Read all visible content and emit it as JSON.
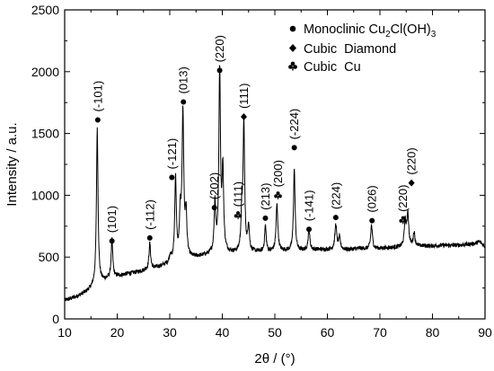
{
  "chart_data": {
    "type": "line",
    "xlabel": "2θ / (°)",
    "ylabel": "Intensity / a.u.",
    "xlim": [
      10,
      90
    ],
    "ylim": [
      0,
      2500
    ],
    "xticks": [
      10,
      20,
      30,
      40,
      50,
      60,
      70,
      80,
      90
    ],
    "yticks": [
      0,
      500,
      1000,
      1500,
      2000,
      2500
    ],
    "grid": false,
    "legend_position": "top-right",
    "legend": [
      {
        "symbol": "circle",
        "label_main": "Monoclinic Cu",
        "sub1": "2",
        "label_mid": "Cl(OH)",
        "sub2": "3",
        "label": "Monoclinic Cu2Cl(OH)3"
      },
      {
        "symbol": "diamond",
        "label": "Cubic  Diamond"
      },
      {
        "symbol": "club",
        "label": "Cubic  Cu"
      }
    ],
    "background": [
      [
        10,
        150
      ],
      [
        12,
        175
      ],
      [
        14,
        215
      ],
      [
        15,
        245
      ],
      [
        16,
        275
      ],
      [
        17,
        300
      ],
      [
        18,
        320
      ],
      [
        20,
        345
      ],
      [
        22,
        365
      ],
      [
        24,
        380
      ],
      [
        26,
        400
      ],
      [
        28,
        420
      ],
      [
        30,
        445
      ],
      [
        32,
        475
      ],
      [
        34,
        490
      ],
      [
        36,
        505
      ],
      [
        38,
        520
      ],
      [
        40,
        530
      ],
      [
        42,
        530
      ],
      [
        44,
        535
      ],
      [
        46,
        540
      ],
      [
        48,
        540
      ],
      [
        50,
        545
      ],
      [
        52,
        550
      ],
      [
        54,
        545
      ],
      [
        56,
        555
      ],
      [
        58,
        560
      ],
      [
        60,
        560
      ],
      [
        62,
        565
      ],
      [
        64,
        560
      ],
      [
        66,
        570
      ],
      [
        68,
        565
      ],
      [
        70,
        570
      ],
      [
        72,
        575
      ],
      [
        74,
        580
      ],
      [
        76,
        585
      ],
      [
        78,
        590
      ],
      [
        80,
        590
      ],
      [
        82,
        595
      ],
      [
        84,
        595
      ],
      [
        86,
        600
      ],
      [
        88,
        610
      ],
      [
        89,
        625
      ],
      [
        90,
        585
      ]
    ],
    "peaks": [
      [
        16.2,
        1255,
        0.18
      ],
      [
        19.0,
        305,
        0.18
      ],
      [
        26.2,
        210,
        0.18
      ],
      [
        30.1,
        60,
        0.2
      ],
      [
        31.1,
        670,
        0.18
      ],
      [
        32.0,
        320,
        0.18
      ],
      [
        32.5,
        1165,
        0.2
      ],
      [
        33.1,
        340,
        0.18
      ],
      [
        38.6,
        400,
        0.18
      ],
      [
        39.5,
        1470,
        0.18
      ],
      [
        40.1,
        650,
        0.18
      ],
      [
        43.7,
        280,
        0.18
      ],
      [
        44.1,
        1035,
        0.18
      ],
      [
        45.0,
        210,
        0.18
      ],
      [
        48.2,
        210,
        0.18
      ],
      [
        50.4,
        380,
        0.2
      ],
      [
        53.7,
        665,
        0.18
      ],
      [
        56.5,
        160,
        0.2
      ],
      [
        61.6,
        200,
        0.2
      ],
      [
        62.3,
        90,
        0.2
      ],
      [
        68.4,
        190,
        0.2
      ],
      [
        74.8,
        200,
        0.2
      ],
      [
        75.3,
        270,
        0.2
      ],
      [
        76.5,
        110,
        0.2
      ]
    ],
    "annotations": [
      {
        "label": "(-101)",
        "x": 16.3,
        "y": 1610,
        "marker": "circle"
      },
      {
        "label": "(101)",
        "x": 19.0,
        "y": 630,
        "marker": "circle"
      },
      {
        "label": "(-112)",
        "x": 26.2,
        "y": 655,
        "marker": "circle"
      },
      {
        "label": "(-121)",
        "x": 30.4,
        "y": 1145,
        "marker": "circle"
      },
      {
        "label": "(013)",
        "x": 32.6,
        "y": 1755,
        "marker": "circle"
      },
      {
        "label": "(202)",
        "x": 38.5,
        "y": 900,
        "marker": "circle"
      },
      {
        "label": "(220)",
        "x": 39.5,
        "y": 2010,
        "marker": "circle"
      },
      {
        "label": "(111)",
        "x": 43.0,
        "y": 840,
        "marker": "club"
      },
      {
        "label": "(111)",
        "x": 44.1,
        "y": 1635,
        "marker": "diamond"
      },
      {
        "label": "(213)",
        "x": 48.2,
        "y": 815,
        "marker": "circle"
      },
      {
        "label": "(200)",
        "x": 50.6,
        "y": 1000,
        "marker": "club"
      },
      {
        "label": "(-224)",
        "x": 53.7,
        "y": 1385,
        "marker": "circle"
      },
      {
        "label": "(-141)",
        "x": 56.5,
        "y": 725,
        "marker": "circle"
      },
      {
        "label": "(224)",
        "x": 61.6,
        "y": 820,
        "marker": "circle"
      },
      {
        "label": "(026)",
        "x": 68.5,
        "y": 795,
        "marker": "circle"
      },
      {
        "label": "(220)",
        "x": 74.4,
        "y": 800,
        "marker": "club"
      },
      {
        "label": "(220)",
        "x": 76.0,
        "y": 1100,
        "marker": "diamond"
      }
    ]
  }
}
